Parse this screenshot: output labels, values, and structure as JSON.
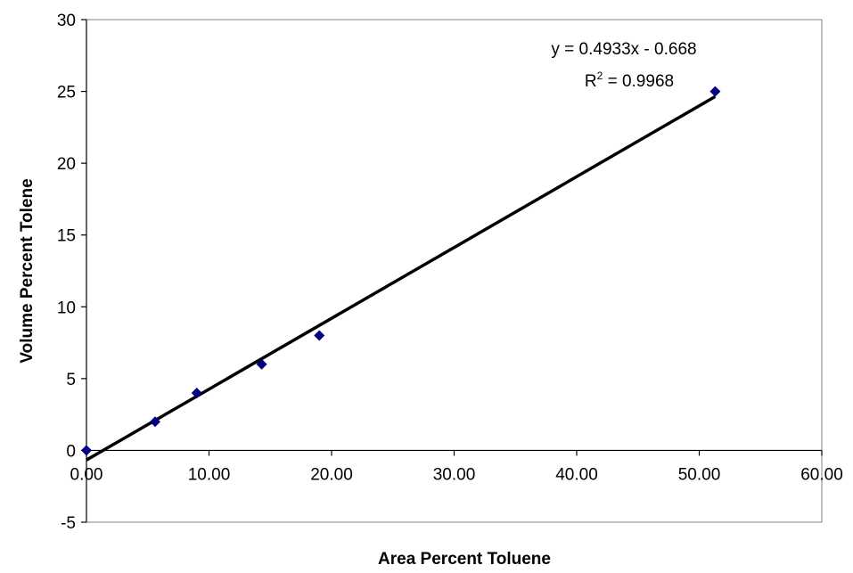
{
  "chart_data": {
    "type": "scatter",
    "xlabel": "Area Percent Toluene",
    "ylabel": "Volume Percent Tolene",
    "xlim": [
      0,
      60
    ],
    "ylim": [
      -5,
      30
    ],
    "x_ticks": [
      0,
      10,
      20,
      30,
      40,
      50,
      60
    ],
    "x_tick_labels": [
      "0.00",
      "10.00",
      "20.00",
      "30.00",
      "40.00",
      "50.00",
      "60.00"
    ],
    "y_ticks": [
      -5,
      0,
      5,
      10,
      15,
      20,
      25,
      30
    ],
    "y_tick_labels": [
      "-5",
      "0",
      "5",
      "10",
      "15",
      "20",
      "25",
      "30"
    ],
    "grid": false,
    "legend": "none",
    "series": [
      {
        "marker": "diamond",
        "color": "#000080",
        "x": [
          0.0,
          5.6,
          9.0,
          14.3,
          19.0,
          51.3
        ],
        "y": [
          0,
          2,
          4,
          6,
          8,
          25
        ]
      }
    ],
    "trendline": {
      "slope": 0.4933,
      "intercept": -0.668,
      "color": "#000000",
      "equation_label": "y = 0.4933x - 0.668",
      "r2_prefix": "R",
      "r2_sup": "2",
      "r2_suffix": " = 0.9968"
    }
  }
}
